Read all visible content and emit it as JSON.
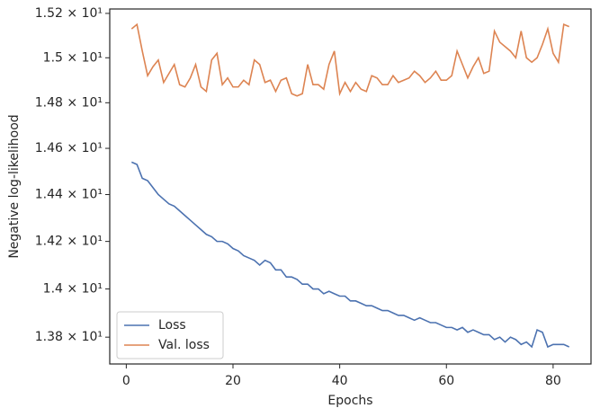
{
  "chart_data": {
    "type": "line",
    "xlabel": "Epochs",
    "ylabel": "Negative log-likelihood",
    "x": [
      1,
      2,
      3,
      4,
      5,
      6,
      7,
      8,
      9,
      10,
      11,
      12,
      13,
      14,
      15,
      16,
      17,
      18,
      19,
      20,
      21,
      22,
      23,
      24,
      25,
      26,
      27,
      28,
      29,
      30,
      31,
      32,
      33,
      34,
      35,
      36,
      37,
      38,
      39,
      40,
      41,
      42,
      43,
      44,
      45,
      46,
      47,
      48,
      49,
      50,
      51,
      52,
      53,
      54,
      55,
      56,
      57,
      58,
      59,
      60,
      61,
      62,
      63,
      64,
      65,
      66,
      67,
      68,
      69,
      70,
      71,
      72,
      73,
      74,
      75,
      76,
      77,
      78,
      79,
      80,
      81,
      82,
      83
    ],
    "series": [
      {
        "name": "Loss",
        "color": "#4c72b0",
        "values": [
          14.54,
          14.53,
          14.47,
          14.46,
          14.43,
          14.4,
          14.38,
          14.36,
          14.35,
          14.33,
          14.31,
          14.29,
          14.27,
          14.25,
          14.23,
          14.22,
          14.2,
          14.2,
          14.19,
          14.17,
          14.16,
          14.14,
          14.13,
          14.12,
          14.1,
          14.12,
          14.11,
          14.08,
          14.08,
          14.05,
          14.05,
          14.04,
          14.02,
          14.02,
          14.0,
          14.0,
          13.98,
          13.99,
          13.98,
          13.97,
          13.97,
          13.95,
          13.95,
          13.94,
          13.93,
          13.93,
          13.92,
          13.91,
          13.91,
          13.9,
          13.89,
          13.89,
          13.88,
          13.87,
          13.88,
          13.87,
          13.86,
          13.86,
          13.85,
          13.84,
          13.84,
          13.83,
          13.84,
          13.82,
          13.83,
          13.82,
          13.81,
          13.81,
          13.79,
          13.8,
          13.78,
          13.8,
          13.79,
          13.77,
          13.78,
          13.76,
          13.83,
          13.82,
          13.76,
          13.77,
          13.77,
          13.77,
          13.76
        ]
      },
      {
        "name": "Val. loss",
        "color": "#dd8452",
        "values": [
          15.13,
          15.15,
          15.03,
          14.92,
          14.96,
          14.99,
          14.89,
          14.93,
          14.97,
          14.88,
          14.87,
          14.91,
          14.97,
          14.87,
          14.85,
          14.99,
          15.02,
          14.88,
          14.91,
          14.87,
          14.87,
          14.9,
          14.88,
          14.99,
          14.97,
          14.89,
          14.9,
          14.85,
          14.9,
          14.91,
          14.84,
          14.83,
          14.84,
          14.97,
          14.88,
          14.88,
          14.86,
          14.97,
          15.03,
          14.84,
          14.89,
          14.85,
          14.89,
          14.86,
          14.85,
          14.92,
          14.91,
          14.88,
          14.88,
          14.92,
          14.89,
          14.9,
          14.91,
          14.94,
          14.92,
          14.89,
          14.91,
          14.94,
          14.9,
          14.9,
          14.92,
          15.03,
          14.97,
          14.91,
          14.96,
          15.0,
          14.93,
          14.94,
          15.12,
          15.07,
          15.05,
          15.03,
          15.0,
          15.12,
          15.0,
          14.98,
          15.0,
          15.06,
          15.13,
          15.02,
          14.98,
          15.15,
          15.14
        ]
      }
    ],
    "xlim": [
      -3.1,
      87.1
    ],
    "xticks": [
      0,
      20,
      40,
      60,
      80
    ],
    "ylim": [
      13.69,
      15.22
    ],
    "ylog": true,
    "yticks": [
      {
        "value": 13.8,
        "label": "1.38 × 10¹"
      },
      {
        "value": 14.0,
        "label": "1.4 × 10¹"
      },
      {
        "value": 14.2,
        "label": "1.42 × 10¹"
      },
      {
        "value": 14.4,
        "label": "1.44 × 10¹"
      },
      {
        "value": 14.6,
        "label": "1.46 × 10¹"
      },
      {
        "value": 14.8,
        "label": "1.48 × 10¹"
      },
      {
        "value": 15.0,
        "label": "1.5 × 10¹"
      },
      {
        "value": 15.2,
        "label": "1.52 × 10¹"
      }
    ],
    "legend": "lower left"
  }
}
